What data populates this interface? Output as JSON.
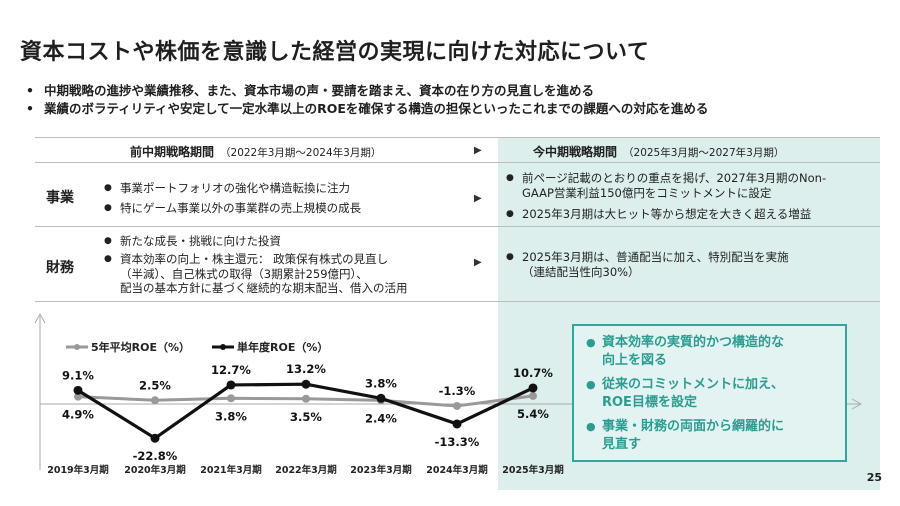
{
  "title": "資本コストや株価を意識した経営の実現に向けた対応について",
  "bullets": [
    "中期戦略の進捗や業績推移、また、資本市場の声・要請を踏まえ、資本の在り方の見直しを進める",
    "業績のボラティリティや安定して一定水準以上のROEを確保する構造の担保といったこれまでの課題への対応を進める"
  ],
  "table": {
    "prev_header": "前中期戦略期間",
    "prev_period": "（2022年3月期～2024年3月期）",
    "curr_header": "今中期戦略期間",
    "curr_period": "（2025年3月期～2027年3月期）",
    "arrow": "▶",
    "rows": [
      {
        "label": "事業",
        "prev": [
          "事業ポートフォリオの強化や構造転換に注力",
          "特にゲーム事業以外の事業群の売上規模の成長"
        ],
        "curr": [
          "前ページ記載のとおりの重点を掲げ、2027年3月期のNon-\nGAAP営業利益150億円をコミットメントに設定",
          "2025年3月期は大ヒット等から想定を大きく超える増益"
        ]
      },
      {
        "label": "財務",
        "prev": [
          "新たな成長・挑戦に向けた投資",
          "資本効率の向上・株主還元： 政策保有株式の見直し\n（半減）、自己株式の取得（3期累計259億円）、\n配当の基本方針に基づく継続的な期末配当、借入の活用"
        ],
        "curr": [
          "2025年3月期は、普通配当に加え、特別配当を実施\n（連結配当性向30%）"
        ]
      }
    ]
  },
  "box_items": [
    "資本効率の実質的かつ構造的な\n向上を図る",
    "従来のコミットメントに加え、\nROE目標を設定",
    "事業・財務の両面から網羅的に\n見直す"
  ],
  "page_number": "25",
  "colors": {
    "panel": "#dcefed",
    "accent": "#2fa89c",
    "avg_line": "#999999",
    "year_line": "#111111"
  },
  "chart_data": {
    "type": "line",
    "categories": [
      "2019年3月期",
      "2020年3月期",
      "2021年3月期",
      "2022年3月期",
      "2023年3月期",
      "2024年3月期",
      "2025年3月期"
    ],
    "series": [
      {
        "name": "5年平均ROE（%）",
        "values": [
          4.9,
          2.5,
          3.8,
          3.5,
          2.4,
          -1.3,
          5.4
        ],
        "labels": [
          "4.9%",
          "2.5%",
          "3.8%",
          "3.5%",
          "2.4%",
          "-1.3%",
          "5.4%"
        ]
      },
      {
        "name": "単年度ROE（%）",
        "values": [
          9.1,
          -22.8,
          12.7,
          13.2,
          3.8,
          -13.3,
          10.7
        ],
        "labels": [
          "9.1%",
          "-22.8%",
          "12.7%",
          "13.2%",
          "3.8%",
          "-13.3%",
          "10.7%"
        ]
      }
    ],
    "legend_position": "top-left",
    "grid": false
  }
}
